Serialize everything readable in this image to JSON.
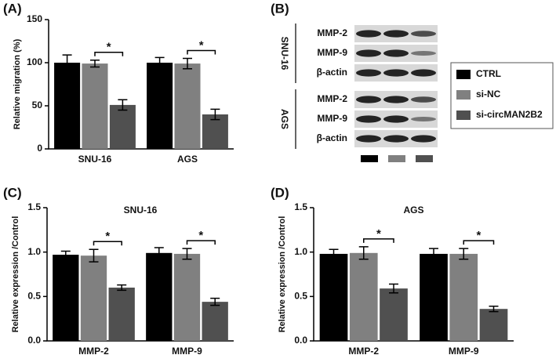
{
  "chart_data": [
    {
      "type": "bar",
      "panel_label": "(A)",
      "ylabel": "Relative migration (%)",
      "categories": [
        "SNU-16",
        "AGS"
      ],
      "series": [
        {
          "name": "CTRL",
          "color": "#000000",
          "values": [
            100,
            100
          ],
          "errors": [
            9,
            6
          ]
        },
        {
          "name": "si-NC",
          "color": "#808080",
          "values": [
            99,
            99
          ],
          "errors": [
            4,
            6
          ]
        },
        {
          "name": "si-circMAN2B2",
          "color": "#505050",
          "values": [
            51,
            40
          ],
          "errors": [
            6,
            6
          ]
        }
      ],
      "annotations": [
        "*",
        "*"
      ],
      "ylim": [
        0,
        150
      ],
      "yticks": [
        0,
        50,
        100,
        150
      ]
    },
    {
      "type": "bar",
      "panel_label": "(C)",
      "title": "SNU-16",
      "ylabel": "Relative expression /Control",
      "categories": [
        "MMP-2",
        "MMP-9"
      ],
      "series": [
        {
          "name": "CTRL",
          "color": "#000000",
          "values": [
            0.97,
            0.99
          ],
          "errors": [
            0.04,
            0.06
          ]
        },
        {
          "name": "si-NC",
          "color": "#808080",
          "values": [
            0.96,
            0.98
          ],
          "errors": [
            0.07,
            0.06
          ]
        },
        {
          "name": "si-circMAN2B2",
          "color": "#505050",
          "values": [
            0.6,
            0.44
          ],
          "errors": [
            0.03,
            0.04
          ]
        }
      ],
      "annotations": [
        "*",
        "*"
      ],
      "ylim": [
        0,
        1.5
      ],
      "yticks": [
        {
          "value": 0,
          "label": "0.0"
        },
        0.5,
        {
          "value": 1,
          "label": "1.0"
        },
        1.5
      ]
    },
    {
      "type": "bar",
      "panel_label": "(D)",
      "title": "AGS",
      "ylabel": "Relative expression /Control",
      "categories": [
        "MMP-2",
        "MMP-9"
      ],
      "series": [
        {
          "name": "CTRL",
          "color": "#000000",
          "values": [
            0.98,
            0.98
          ],
          "errors": [
            0.05,
            0.06
          ]
        },
        {
          "name": "si-NC",
          "color": "#808080",
          "values": [
            0.99,
            0.98
          ],
          "errors": [
            0.07,
            0.06
          ]
        },
        {
          "name": "si-circMAN2B2",
          "color": "#505050",
          "values": [
            0.59,
            0.36
          ],
          "errors": [
            0.05,
            0.03
          ]
        }
      ],
      "annotations": [
        "*",
        "*"
      ],
      "ylim": [
        0,
        1.5
      ],
      "yticks": [
        {
          "value": 0,
          "label": "0.0"
        },
        0.5,
        {
          "value": 1,
          "label": "1.0"
        },
        1.5
      ]
    }
  ],
  "blot": {
    "panel_label": "(B)",
    "groups": [
      {
        "name": "SNU-16",
        "rows": [
          "MMP-2",
          "MMP-9",
          "β-actin"
        ]
      },
      {
        "name": "AGS",
        "rows": [
          "MMP-2",
          "MMP-9",
          "β-actin"
        ]
      }
    ]
  }
}
